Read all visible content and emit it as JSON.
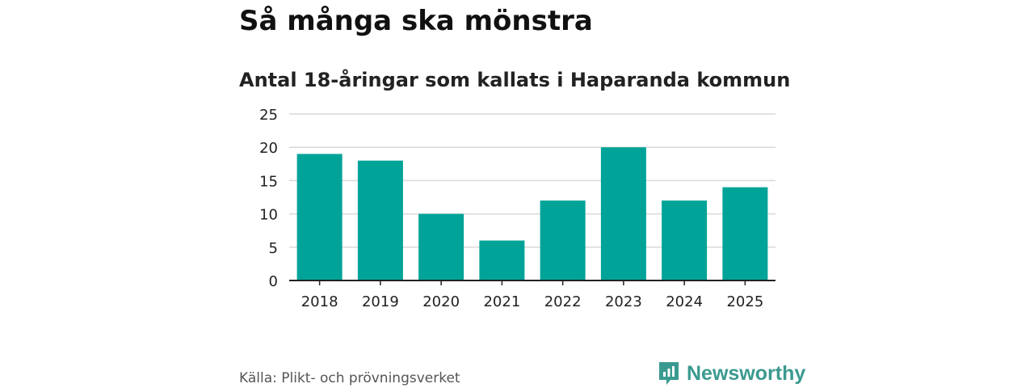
{
  "colors": {
    "bar": "#00a398",
    "grid": "#d9d9d9",
    "axis": "#222222",
    "brand": "#3b9a90"
  },
  "source": "Källa: Plikt- och prövningsverket",
  "brand": {
    "name": "Newsworthy",
    "icon": "newsworthy-logo-icon"
  },
  "chart_data": {
    "type": "bar",
    "title": "Så många ska mönstra",
    "subtitle": "Antal 18-åringar som kallats i Haparanda kommun",
    "categories": [
      "2018",
      "2019",
      "2020",
      "2021",
      "2022",
      "2023",
      "2024",
      "2025"
    ],
    "values": [
      19,
      18,
      10,
      6,
      12,
      20,
      12,
      14
    ],
    "ylim": [
      0,
      25
    ],
    "yticks": [
      "0",
      "5",
      "10",
      "15",
      "20",
      "25"
    ],
    "grid": true,
    "xlabel": "",
    "ylabel": ""
  }
}
